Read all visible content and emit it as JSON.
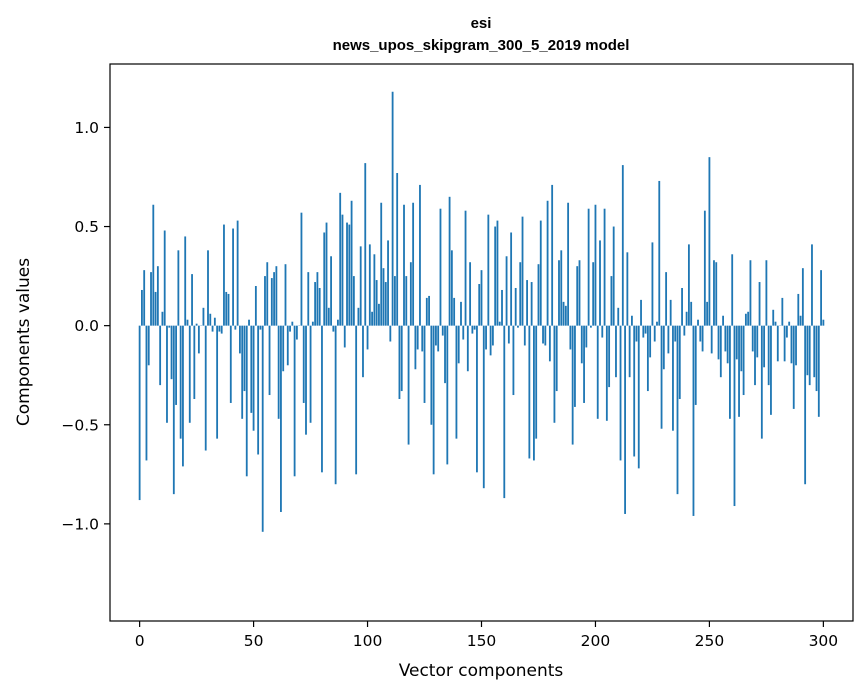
{
  "chart_data": {
    "type": "bar",
    "title": "esi",
    "subtitle": "news_upos_skipgram_300_5_2019 model",
    "xlabel": "Vector components",
    "ylabel": "Components values",
    "xlim": [
      -13,
      313
    ],
    "ylim": [
      -1.49,
      1.32
    ],
    "xticks": [
      0,
      50,
      100,
      150,
      200,
      250,
      300
    ],
    "yticks": [
      -1.0,
      -0.5,
      0.0,
      0.5,
      1.0
    ],
    "ytick_labels": [
      "−1.0",
      "−0.5",
      "0.0",
      "0.5",
      "1.0"
    ],
    "bar_width": 0.8,
    "color": "#1f77b4",
    "values": [
      -0.88,
      0.18,
      0.28,
      -0.68,
      -0.2,
      0.27,
      0.61,
      0.17,
      0.3,
      -0.3,
      0.07,
      0.48,
      -0.49,
      -0.01,
      -0.27,
      -0.85,
      -0.4,
      0.38,
      -0.57,
      -0.71,
      0.45,
      0.03,
      -0.49,
      0.26,
      -0.37,
      0.01,
      -0.14,
      0.0,
      0.09,
      -0.63,
      0.38,
      0.06,
      -0.03,
      0.04,
      -0.57,
      -0.03,
      -0.04,
      0.51,
      0.17,
      0.16,
      -0.39,
      0.49,
      -0.02,
      0.53,
      -0.14,
      -0.47,
      -0.33,
      -0.76,
      0.03,
      -0.44,
      -0.53,
      0.2,
      -0.65,
      -0.02,
      -1.04,
      0.25,
      0.32,
      -0.35,
      0.24,
      0.27,
      0.3,
      -0.47,
      -0.94,
      -0.23,
      0.31,
      -0.2,
      -0.03,
      0.02,
      -0.76,
      -0.07,
      0.0,
      0.57,
      -0.39,
      -0.55,
      0.27,
      -0.49,
      0.02,
      0.22,
      0.27,
      0.19,
      -0.74,
      0.47,
      0.52,
      0.09,
      0.35,
      -0.03,
      -0.8,
      0.03,
      0.67,
      0.56,
      -0.11,
      0.52,
      0.51,
      0.63,
      0.25,
      -0.75,
      0.09,
      0.4,
      -0.26,
      0.82,
      -0.12,
      0.41,
      0.07,
      0.36,
      0.23,
      0.11,
      0.62,
      0.29,
      0.22,
      0.43,
      -0.08,
      1.18,
      0.25,
      0.77,
      -0.37,
      -0.33,
      0.61,
      0.25,
      -0.6,
      0.32,
      0.62,
      -0.22,
      -0.12,
      0.71,
      -0.13,
      -0.39,
      0.14,
      0.15,
      -0.5,
      -0.75,
      -0.1,
      -0.13,
      0.59,
      -0.05,
      -0.29,
      -0.7,
      0.65,
      0.38,
      0.14,
      -0.57,
      -0.19,
      0.12,
      -0.07,
      0.58,
      -0.23,
      0.32,
      -0.04,
      -0.02,
      -0.74,
      0.21,
      0.28,
      -0.82,
      -0.12,
      0.56,
      -0.15,
      -0.1,
      0.5,
      0.53,
      0.02,
      0.18,
      -0.87,
      0.35,
      -0.09,
      0.47,
      -0.35,
      0.19,
      -0.01,
      0.32,
      0.55,
      -0.1,
      0.23,
      -0.67,
      0.22,
      -0.68,
      -0.57,
      0.31,
      0.53,
      -0.09,
      -0.1,
      0.63,
      -0.18,
      0.71,
      -0.49,
      -0.33,
      0.33,
      0.38,
      0.12,
      0.1,
      0.62,
      -0.12,
      -0.6,
      -0.41,
      0.3,
      0.33,
      -0.19,
      -0.39,
      -0.11,
      0.59,
      -0.01,
      0.32,
      0.61,
      -0.47,
      0.43,
      -0.06,
      0.59,
      -0.48,
      -0.31,
      0.25,
      0.5,
      -0.26,
      0.09,
      -0.68,
      0.81,
      -0.95,
      0.37,
      -0.26,
      0.05,
      -0.66,
      -0.08,
      -0.72,
      0.13,
      -0.06,
      -0.04,
      -0.33,
      -0.16,
      0.42,
      -0.08,
      0.02,
      0.73,
      -0.52,
      -0.22,
      0.27,
      -0.14,
      0.13,
      -0.53,
      -0.08,
      -0.85,
      -0.37,
      0.19,
      -0.05,
      0.07,
      0.41,
      0.12,
      -0.96,
      -0.4,
      0.03,
      -0.08,
      -0.13,
      0.58,
      0.12,
      0.85,
      -0.14,
      0.33,
      0.32,
      -0.17,
      -0.26,
      0.05,
      -0.13,
      -0.19,
      -0.47,
      0.36,
      -0.91,
      -0.17,
      -0.46,
      -0.23,
      -0.35,
      0.06,
      0.07,
      0.33,
      -0.13,
      -0.3,
      -0.16,
      0.22,
      -0.57,
      -0.21,
      0.33,
      -0.3,
      -0.45,
      0.08,
      0.02,
      -0.18,
      0.0,
      0.14,
      -0.18,
      -0.06,
      0.02,
      -0.19,
      -0.42,
      -0.2,
      0.16,
      0.05,
      0.29,
      -0.8,
      -0.25,
      -0.3,
      0.41,
      -0.26,
      -0.33,
      -0.46,
      0.28,
      0.03
    ]
  }
}
